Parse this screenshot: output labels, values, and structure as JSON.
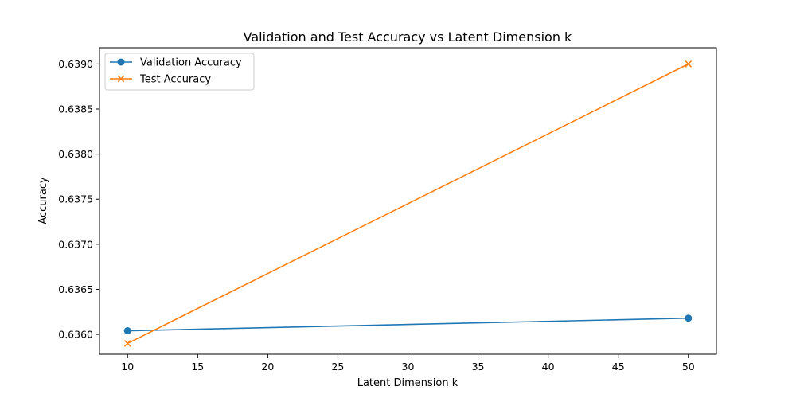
{
  "chart_data": {
    "type": "line",
    "title": "Validation and Test Accuracy vs Latent Dimension k",
    "xlabel": "Latent Dimension k",
    "ylabel": "Accuracy",
    "xlim": [
      8,
      52
    ],
    "ylim": [
      0.63578,
      0.63918
    ],
    "xticks": [
      10,
      15,
      20,
      25,
      30,
      35,
      40,
      45,
      50
    ],
    "xtick_labels": [
      "10",
      "15",
      "20",
      "25",
      "30",
      "35",
      "40",
      "45",
      "50"
    ],
    "yticks": [
      0.636,
      0.6365,
      0.637,
      0.6375,
      0.638,
      0.6385,
      0.639
    ],
    "ytick_labels": [
      "0.6360",
      "0.6365",
      "0.6370",
      "0.6375",
      "0.6380",
      "0.6385",
      "0.6390"
    ],
    "grid": false,
    "legend_position": "top-left",
    "series": [
      {
        "name": "Validation Accuracy",
        "marker": "circle",
        "color": "#1f77b4",
        "x": [
          10,
          50
        ],
        "values": [
          0.63604,
          0.63618
        ]
      },
      {
        "name": "Test Accuracy",
        "marker": "x",
        "color": "#ff7f0e",
        "x": [
          10,
          50
        ],
        "values": [
          0.6359,
          0.639
        ]
      }
    ]
  }
}
